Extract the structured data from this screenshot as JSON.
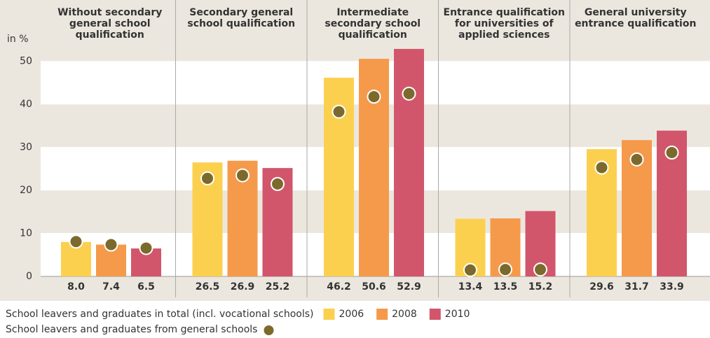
{
  "chart_data": {
    "type": "bar",
    "y_label": "in %",
    "categories": [
      "Without secondary general school qualification",
      "Secondary general school qualification",
      "Intermediate secondary school qualification",
      "Entrance qualification for universities of applied sciences",
      "General university entrance qualification"
    ],
    "series": [
      {
        "name": "2006",
        "color": "#fcd04f",
        "values": [
          8.0,
          26.5,
          46.2,
          13.4,
          29.6
        ],
        "value_labels": [
          "8.0",
          "26.5",
          "46.2",
          "13.4",
          "29.6"
        ],
        "general_values": [
          8.1,
          22.8,
          38.3,
          1.5,
          25.3
        ]
      },
      {
        "name": "2008",
        "color": "#f59a4b",
        "values": [
          7.4,
          26.9,
          50.6,
          13.5,
          31.7
        ],
        "value_labels": [
          "7.4",
          "26.9",
          "50.6",
          "13.5",
          "31.7"
        ],
        "general_values": [
          7.4,
          23.5,
          41.8,
          1.6,
          27.2
        ]
      },
      {
        "name": "2010",
        "color": "#d2566b",
        "values": [
          6.5,
          25.2,
          52.9,
          15.2,
          33.9
        ],
        "value_labels": [
          "6.5",
          "25.2",
          "52.9",
          "15.2",
          "33.9"
        ],
        "general_values": [
          6.6,
          21.5,
          42.5,
          1.6,
          28.8
        ]
      }
    ],
    "legend_total": "School leavers and graduates in total (incl. vocational schools)",
    "legend_general": "School leavers and graduates from general schools",
    "general_color": "#7c6a2c",
    "ylim": [
      0,
      55
    ],
    "yticks": [
      0,
      10,
      20,
      30,
      40,
      50
    ]
  }
}
